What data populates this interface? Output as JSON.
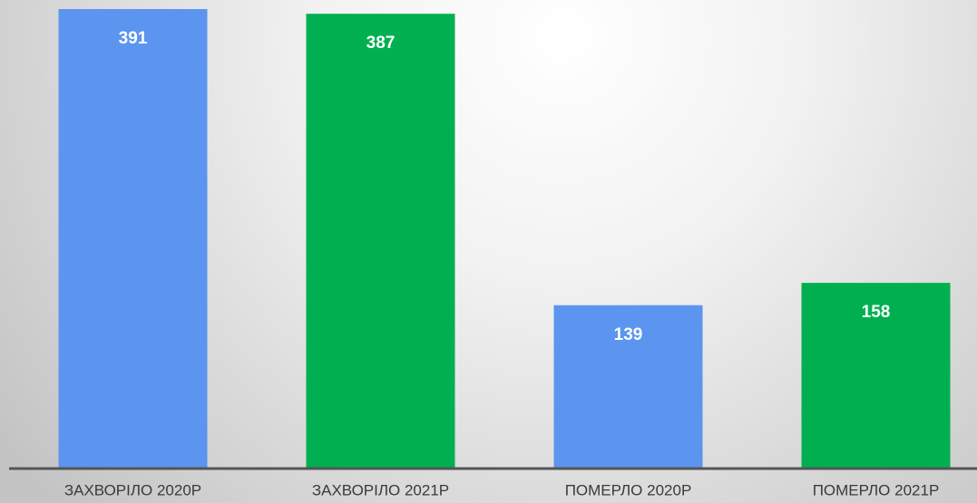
{
  "chart_data": {
    "type": "bar",
    "categories": [
      "ЗАХВОРІЛО 2020Р",
      "ЗАХВОРІЛО 2021Р",
      "ПОМЕРЛО 2020Р",
      "ПОМЕРЛО 2021Р"
    ],
    "values": [
      391,
      387,
      139,
      158
    ],
    "colors": [
      "#5b95f0",
      "#00b050",
      "#5b95f0",
      "#00b050"
    ]
  }
}
